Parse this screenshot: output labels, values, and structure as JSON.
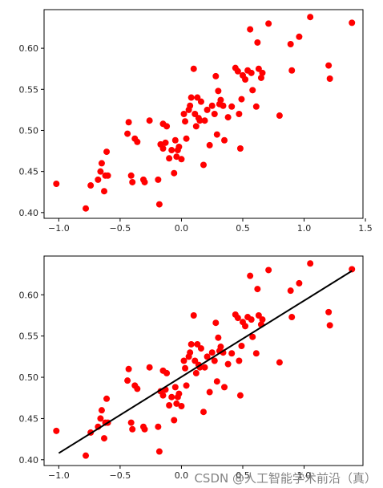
{
  "chart_data": [
    {
      "type": "scatter",
      "xlim": [
        -1.12,
        1.48
      ],
      "ylim": [
        0.393,
        0.647
      ],
      "xticks": [
        -1.0,
        -0.5,
        0.0,
        0.5,
        1.0,
        1.5
      ],
      "xtick_labels": [
        "−1.0",
        "−0.5",
        "0.0",
        "0.5",
        "1.0",
        "1.5"
      ],
      "yticks": [
        0.4,
        0.45,
        0.5,
        0.55,
        0.6
      ],
      "ytick_labels": [
        "0.40",
        "0.45",
        "0.50",
        "0.55",
        "0.60"
      ],
      "grid": false,
      "point_color": "#ff0000",
      "x": [
        -1.02,
        -0.78,
        -0.74,
        -0.68,
        -0.66,
        -0.65,
        -0.63,
        -0.62,
        -0.61,
        -0.6,
        -0.44,
        -0.43,
        -0.41,
        -0.4,
        -0.38,
        -0.36,
        -0.31,
        -0.3,
        -0.26,
        -0.19,
        -0.18,
        -0.17,
        -0.15,
        -0.15,
        -0.13,
        -0.12,
        -0.1,
        -0.08,
        -0.06,
        -0.05,
        -0.04,
        -0.03,
        -0.02,
        0.0,
        0.02,
        0.03,
        0.04,
        0.06,
        0.07,
        0.08,
        0.1,
        0.11,
        0.12,
        0.13,
        0.14,
        0.15,
        0.16,
        0.18,
        0.19,
        0.21,
        0.23,
        0.25,
        0.27,
        0.28,
        0.29,
        0.3,
        0.31,
        0.32,
        0.34,
        0.35,
        0.38,
        0.41,
        0.44,
        0.46,
        0.47,
        0.48,
        0.49,
        0.5,
        0.52,
        0.54,
        0.56,
        0.57,
        0.58,
        0.61,
        0.62,
        0.63,
        0.65,
        0.66,
        0.71,
        0.8,
        0.89,
        0.9,
        0.96,
        1.05,
        1.2,
        1.21,
        1.39
      ],
      "y": [
        0.435,
        0.405,
        0.433,
        0.44,
        0.45,
        0.46,
        0.426,
        0.445,
        0.474,
        0.445,
        0.496,
        0.51,
        0.445,
        0.437,
        0.49,
        0.486,
        0.44,
        0.437,
        0.512,
        0.44,
        0.41,
        0.483,
        0.508,
        0.478,
        0.485,
        0.505,
        0.466,
        0.476,
        0.448,
        0.488,
        0.468,
        0.476,
        0.48,
        0.465,
        0.52,
        0.511,
        0.49,
        0.525,
        0.53,
        0.54,
        0.575,
        0.52,
        0.505,
        0.54,
        0.515,
        0.512,
        0.535,
        0.458,
        0.512,
        0.525,
        0.482,
        0.53,
        0.52,
        0.566,
        0.495,
        0.548,
        0.532,
        0.537,
        0.53,
        0.488,
        0.516,
        0.529,
        0.576,
        0.572,
        0.52,
        0.478,
        0.538,
        0.567,
        0.562,
        0.573,
        0.623,
        0.57,
        0.549,
        0.529,
        0.607,
        0.575,
        0.564,
        0.57,
        0.63,
        0.518,
        0.605,
        0.573,
        0.614,
        0.638,
        0.579,
        0.563,
        0.631
      ]
    },
    {
      "type": "scatter",
      "xlim": [
        -1.12,
        1.48
      ],
      "ylim": [
        0.393,
        0.647
      ],
      "xticks": [
        -1.0,
        -0.5,
        0.0,
        0.5,
        1.0
      ],
      "xtick_labels": [
        "−1.0",
        "−0.5",
        "0.0",
        "0.5",
        "1.0"
      ],
      "yticks": [
        0.4,
        0.45,
        0.5,
        0.55,
        0.6
      ],
      "ytick_labels": [
        "0.40",
        "0.45",
        "0.50",
        "0.55",
        "0.60"
      ],
      "grid": false,
      "point_color": "#ff0000",
      "line_color": "#000000",
      "fit_line": {
        "x": [
          -1.0,
          1.39
        ],
        "y": [
          0.408,
          0.629
        ]
      },
      "x": [
        -1.02,
        -0.78,
        -0.74,
        -0.68,
        -0.66,
        -0.65,
        -0.63,
        -0.62,
        -0.61,
        -0.6,
        -0.44,
        -0.43,
        -0.41,
        -0.4,
        -0.38,
        -0.36,
        -0.31,
        -0.3,
        -0.26,
        -0.19,
        -0.18,
        -0.17,
        -0.15,
        -0.15,
        -0.13,
        -0.12,
        -0.1,
        -0.08,
        -0.06,
        -0.05,
        -0.04,
        -0.03,
        -0.02,
        0.0,
        0.02,
        0.03,
        0.04,
        0.06,
        0.07,
        0.08,
        0.1,
        0.11,
        0.12,
        0.13,
        0.14,
        0.15,
        0.16,
        0.18,
        0.19,
        0.21,
        0.23,
        0.25,
        0.27,
        0.28,
        0.29,
        0.3,
        0.31,
        0.32,
        0.34,
        0.35,
        0.38,
        0.41,
        0.44,
        0.46,
        0.47,
        0.48,
        0.49,
        0.5,
        0.52,
        0.54,
        0.56,
        0.57,
        0.58,
        0.61,
        0.62,
        0.63,
        0.65,
        0.66,
        0.71,
        0.8,
        0.89,
        0.9,
        0.96,
        1.05,
        1.2,
        1.21,
        1.39
      ],
      "y": [
        0.435,
        0.405,
        0.433,
        0.44,
        0.45,
        0.46,
        0.426,
        0.445,
        0.474,
        0.445,
        0.496,
        0.51,
        0.445,
        0.437,
        0.49,
        0.486,
        0.44,
        0.437,
        0.512,
        0.44,
        0.41,
        0.483,
        0.508,
        0.478,
        0.485,
        0.505,
        0.466,
        0.476,
        0.448,
        0.488,
        0.468,
        0.476,
        0.48,
        0.465,
        0.52,
        0.511,
        0.49,
        0.525,
        0.53,
        0.54,
        0.575,
        0.52,
        0.505,
        0.54,
        0.515,
        0.512,
        0.535,
        0.458,
        0.512,
        0.525,
        0.482,
        0.53,
        0.52,
        0.566,
        0.495,
        0.548,
        0.532,
        0.537,
        0.53,
        0.488,
        0.516,
        0.529,
        0.576,
        0.572,
        0.52,
        0.478,
        0.538,
        0.567,
        0.562,
        0.573,
        0.623,
        0.57,
        0.549,
        0.529,
        0.607,
        0.575,
        0.564,
        0.57,
        0.63,
        0.518,
        0.605,
        0.573,
        0.614,
        0.638,
        0.579,
        0.563,
        0.631
      ]
    }
  ],
  "watermark": "CSDN @人工智能学术前沿（真）"
}
